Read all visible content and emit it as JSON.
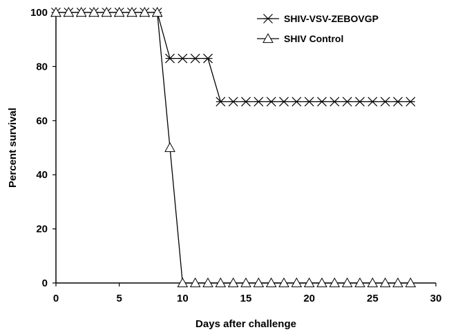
{
  "chart_data": {
    "type": "line",
    "title": "",
    "xlabel": "Days after challenge",
    "ylabel": "Percent survival",
    "xlim": [
      0,
      30
    ],
    "ylim": [
      0,
      100
    ],
    "xticks": [
      0,
      5,
      10,
      15,
      20,
      25,
      30
    ],
    "yticks": [
      0,
      20,
      40,
      60,
      80,
      100
    ],
    "xtick_labels": [
      "0",
      "5",
      "10",
      "15",
      "20",
      "25",
      "30"
    ],
    "ytick_labels": [
      "0",
      "20",
      "40",
      "60",
      "80",
      "100"
    ],
    "grid": false,
    "legend_position": "top-right",
    "series": [
      {
        "name": "SHIV-VSV-ZEBOVGP",
        "marker": "x",
        "color": "#000000",
        "x": [
          0,
          1,
          2,
          3,
          4,
          5,
          6,
          7,
          8,
          9,
          10,
          11,
          12,
          13,
          14,
          15,
          16,
          17,
          18,
          19,
          20,
          21,
          22,
          23,
          24,
          25,
          26,
          27,
          28
        ],
        "y": [
          100,
          100,
          100,
          100,
          100,
          100,
          100,
          100,
          100,
          83,
          83,
          83,
          83,
          67,
          67,
          67,
          67,
          67,
          67,
          67,
          67,
          67,
          67,
          67,
          67,
          67,
          67,
          67,
          67
        ]
      },
      {
        "name": "SHIV Control",
        "marker": "triangle",
        "color": "#000000",
        "x": [
          0,
          1,
          2,
          3,
          4,
          5,
          6,
          7,
          8,
          9,
          10,
          11,
          12,
          13,
          14,
          15,
          16,
          17,
          18,
          19,
          20,
          21,
          22,
          23,
          24,
          25,
          26,
          27,
          28
        ],
        "y": [
          100,
          100,
          100,
          100,
          100,
          100,
          100,
          100,
          100,
          50,
          0,
          0,
          0,
          0,
          0,
          0,
          0,
          0,
          0,
          0,
          0,
          0,
          0,
          0,
          0,
          0,
          0,
          0,
          0
        ]
      }
    ]
  }
}
